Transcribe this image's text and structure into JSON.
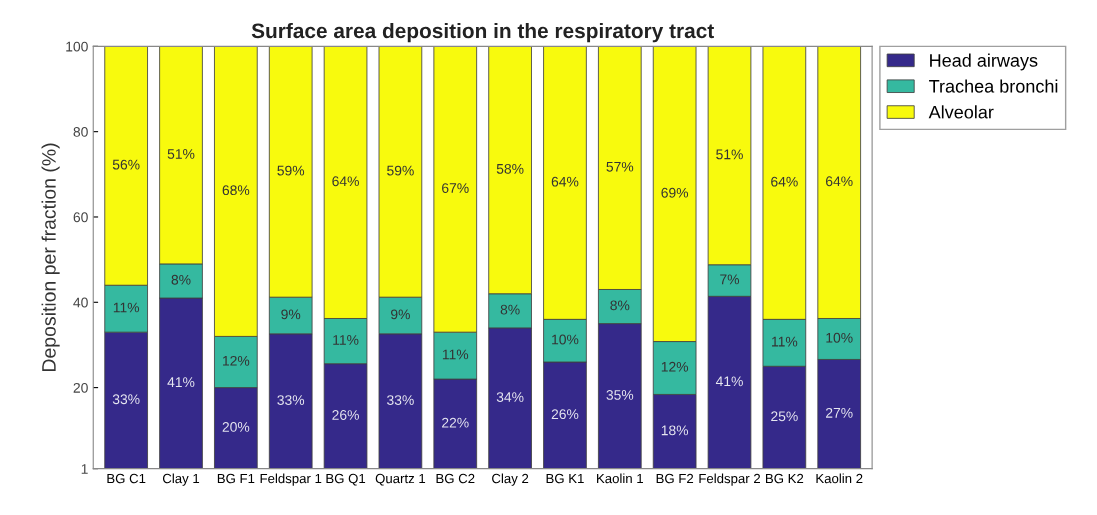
{
  "chart_data": {
    "type": "bar",
    "stacked": true,
    "title": "Surface area deposition in the respiratory tract",
    "ylabel": "Deposition per fraction (%)",
    "categories": [
      "BG C1",
      "Clay 1",
      "BG F1",
      "Feldspar 1",
      "BG Q1",
      "Quartz 1",
      "BG C2",
      "Clay 2",
      "BG K1",
      "Kaolin 1",
      "BG F2",
      "Feldspar 2",
      "BG K2",
      "Kaolin 2"
    ],
    "series": [
      {
        "name": "Head airways",
        "color": "#35298a",
        "values": [
          33,
          41,
          20,
          32.6,
          25.6,
          32.6,
          22,
          34,
          26,
          35,
          18.4,
          41.4,
          25,
          26.6
        ],
        "value_labels": [
          "33%",
          "41%",
          "20%",
          "33%",
          "26%",
          "33%",
          "22%",
          "34%",
          "26%",
          "35%",
          "18%",
          "41%",
          "25%",
          "27%"
        ]
      },
      {
        "name": "Trachea bronchi",
        "color": "#35b9a0",
        "values": [
          11,
          8,
          12,
          8.6,
          10.6,
          8.6,
          11,
          8,
          10,
          8,
          12.4,
          7.4,
          11,
          9.6
        ],
        "value_labels": [
          "11%",
          "8%",
          "12%",
          "9%",
          "11%",
          "9%",
          "11%",
          "8%",
          "10%",
          "8%",
          "12%",
          "7%",
          "11%",
          "10%"
        ]
      },
      {
        "name": "Alveolar",
        "color": "#f8fa0d",
        "values": [
          56,
          51,
          68,
          58.8,
          63.8,
          58.8,
          67,
          58,
          64,
          57,
          69.2,
          51.2,
          64,
          63.8
        ],
        "value_labels": [
          "56%",
          "51%",
          "68%",
          "59%",
          "64%",
          "59%",
          "67%",
          "58%",
          "64%",
          "57%",
          "69%",
          "51%",
          "64%",
          "64%"
        ]
      }
    ],
    "ylim": [
      1,
      100
    ],
    "yticks": [
      1,
      20,
      40,
      60,
      80,
      100
    ],
    "legend": "top right"
  }
}
